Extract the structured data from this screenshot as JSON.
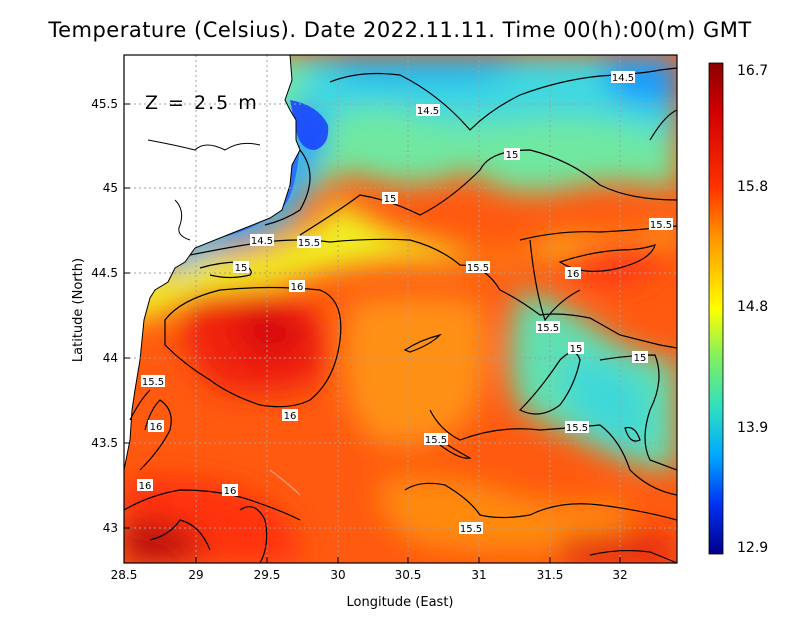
{
  "title": "Temperature (Celsius). Date 2022.11.11. Time 00(h):00(m) GMT",
  "depth_label": "Z = 2.5 m",
  "x_axis_label": "Longitude (East)",
  "y_axis_label": "Latitude (North)",
  "x_ticks": [
    "28.5",
    "29",
    "29.5",
    "30",
    "30.5",
    "31",
    "31.5",
    "32"
  ],
  "y_ticks": [
    "43",
    "43.5",
    "44",
    "44.5",
    "45",
    "45.5"
  ],
  "colorbar_labels": [
    "16.7",
    "15.8",
    "14.8",
    "13.9",
    "12.9"
  ],
  "contour_labels": [
    "14.5",
    "14.5",
    "15",
    "15",
    "14.5",
    "15.5",
    "15",
    "15.5",
    "15.5",
    "16",
    "16",
    "16",
    "15.5",
    "15",
    "15",
    "15.5",
    "16",
    "15.5",
    "15.5",
    "16",
    "16",
    "15.5"
  ],
  "chart_data": {
    "type": "heatmap",
    "title": "Temperature (Celsius). Date 2022.11.11. Time 00(h):00(m) GMT",
    "xlabel": "Longitude (East)",
    "ylabel": "Latitude (North)",
    "xlim": [
      28.5,
      32.4
    ],
    "ylim": [
      42.8,
      45.8
    ],
    "colorbar_range": [
      12.9,
      16.7
    ],
    "colormap": [
      "#00008b",
      "#0030ff",
      "#00c8ff",
      "#40e0c0",
      "#ffff00",
      "#ff8000",
      "#e00000",
      "#8b0000"
    ],
    "contour_levels": [
      14.5,
      15,
      15.5,
      16
    ],
    "grid": true
  }
}
